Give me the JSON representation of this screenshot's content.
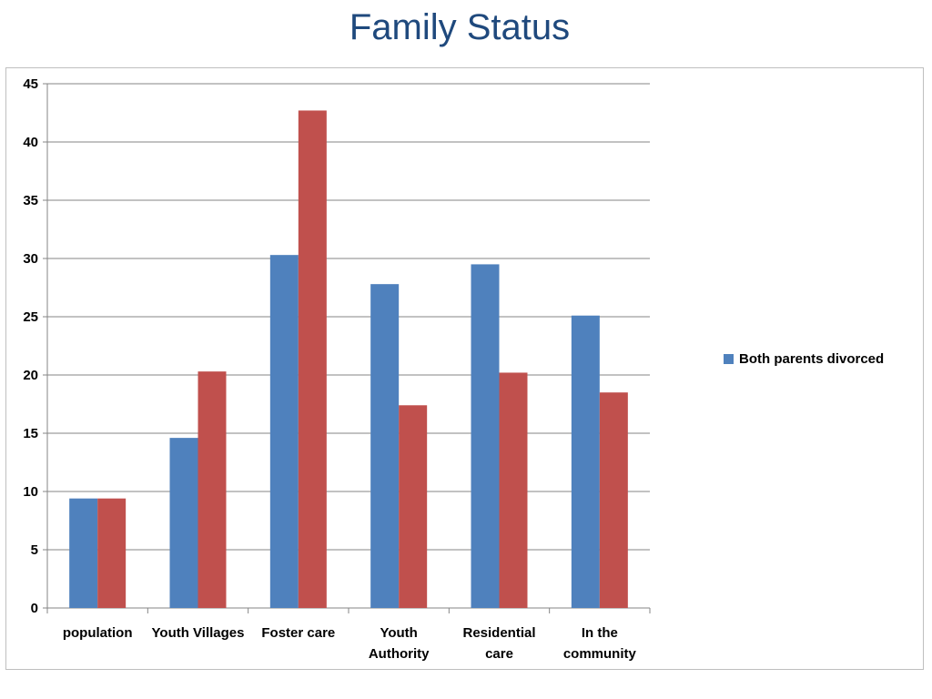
{
  "slide": {
    "title": "Family Status"
  },
  "chart_data": {
    "type": "bar",
    "categories": [
      "population",
      "Youth Villages",
      "Foster care",
      "Youth Authority",
      "Residential care",
      "In the community"
    ],
    "category_lines": [
      [
        "population"
      ],
      [
        "Youth Villages"
      ],
      [
        "Foster care"
      ],
      [
        "Youth",
        "Authority"
      ],
      [
        "Residential",
        "care"
      ],
      [
        "In the",
        "community"
      ]
    ],
    "series": [
      {
        "name": "Both parents divorced",
        "color": "#4f81bd",
        "values": [
          9.4,
          14.6,
          30.3,
          27.8,
          29.5,
          25.1
        ]
      },
      {
        "color": "#c0504d",
        "values": [
          9.4,
          20.3,
          42.7,
          17.4,
          20.2,
          18.5
        ]
      }
    ],
    "ylim": [
      0,
      45
    ],
    "yticks": [
      0,
      5,
      10,
      15,
      20,
      25,
      30,
      35,
      40,
      45
    ],
    "grid": true,
    "legend_position": "right",
    "title": "",
    "xlabel": "",
    "ylabel": ""
  }
}
